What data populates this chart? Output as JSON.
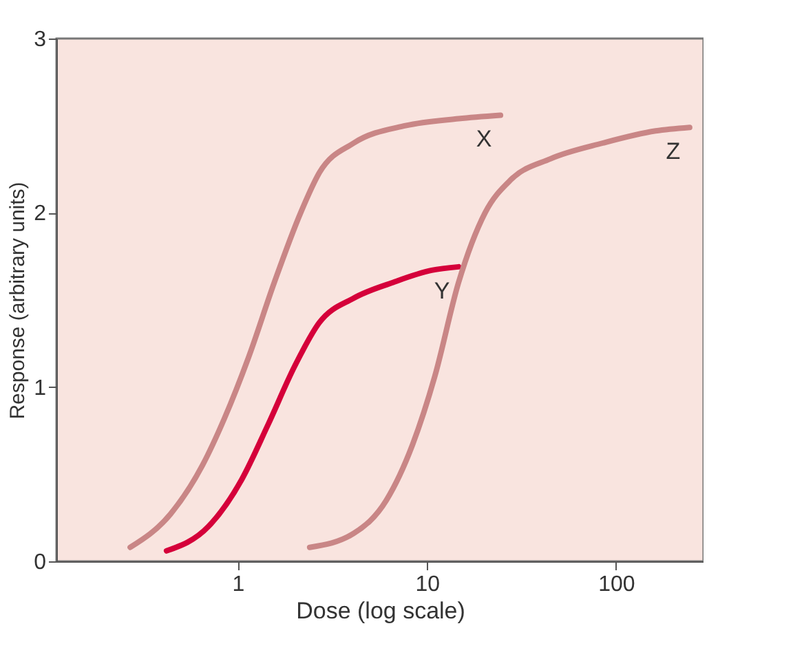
{
  "chart_data": {
    "type": "line",
    "xlabel": "Dose (log scale)",
    "ylabel": "Response (arbitrary units)",
    "log": "x",
    "xlim": [
      0.11,
      290
    ],
    "xticks": [
      1,
      10,
      100
    ],
    "ylim": [
      0,
      3
    ],
    "yticks": [
      0,
      1,
      2,
      3
    ],
    "grid": false,
    "marker": "none",
    "line_style": "solid",
    "series": [
      {
        "name": "X",
        "color": "#c98686",
        "x": [
          0.27,
          0.44,
          0.65,
          0.85,
          1.14,
          1.56,
          2.15,
          2.7,
          4.1,
          7.7,
          14.7,
          24.5
        ],
        "values": [
          0.08,
          0.27,
          0.55,
          0.82,
          1.17,
          1.6,
          2.0,
          2.23,
          2.4,
          2.5,
          2.54,
          2.56
        ]
      },
      {
        "name": "Y",
        "color": "#d5003a",
        "x": [
          0.42,
          0.7,
          1.05,
          1.44,
          2.0,
          2.7,
          4.1,
          6.6,
          10.6,
          14.7
        ],
        "values": [
          0.06,
          0.2,
          0.47,
          0.78,
          1.12,
          1.37,
          1.51,
          1.6,
          1.67,
          1.69
        ]
      },
      {
        "name": "Z",
        "color": "#c98686",
        "x": [
          2.4,
          4.1,
          6.1,
          8.4,
          11,
          14.7,
          20.3,
          27.8,
          45,
          85,
          162,
          245
        ],
        "values": [
          0.08,
          0.16,
          0.35,
          0.67,
          1.06,
          1.6,
          2.0,
          2.19,
          2.31,
          2.4,
          2.47,
          2.49
        ]
      }
    ]
  }
}
